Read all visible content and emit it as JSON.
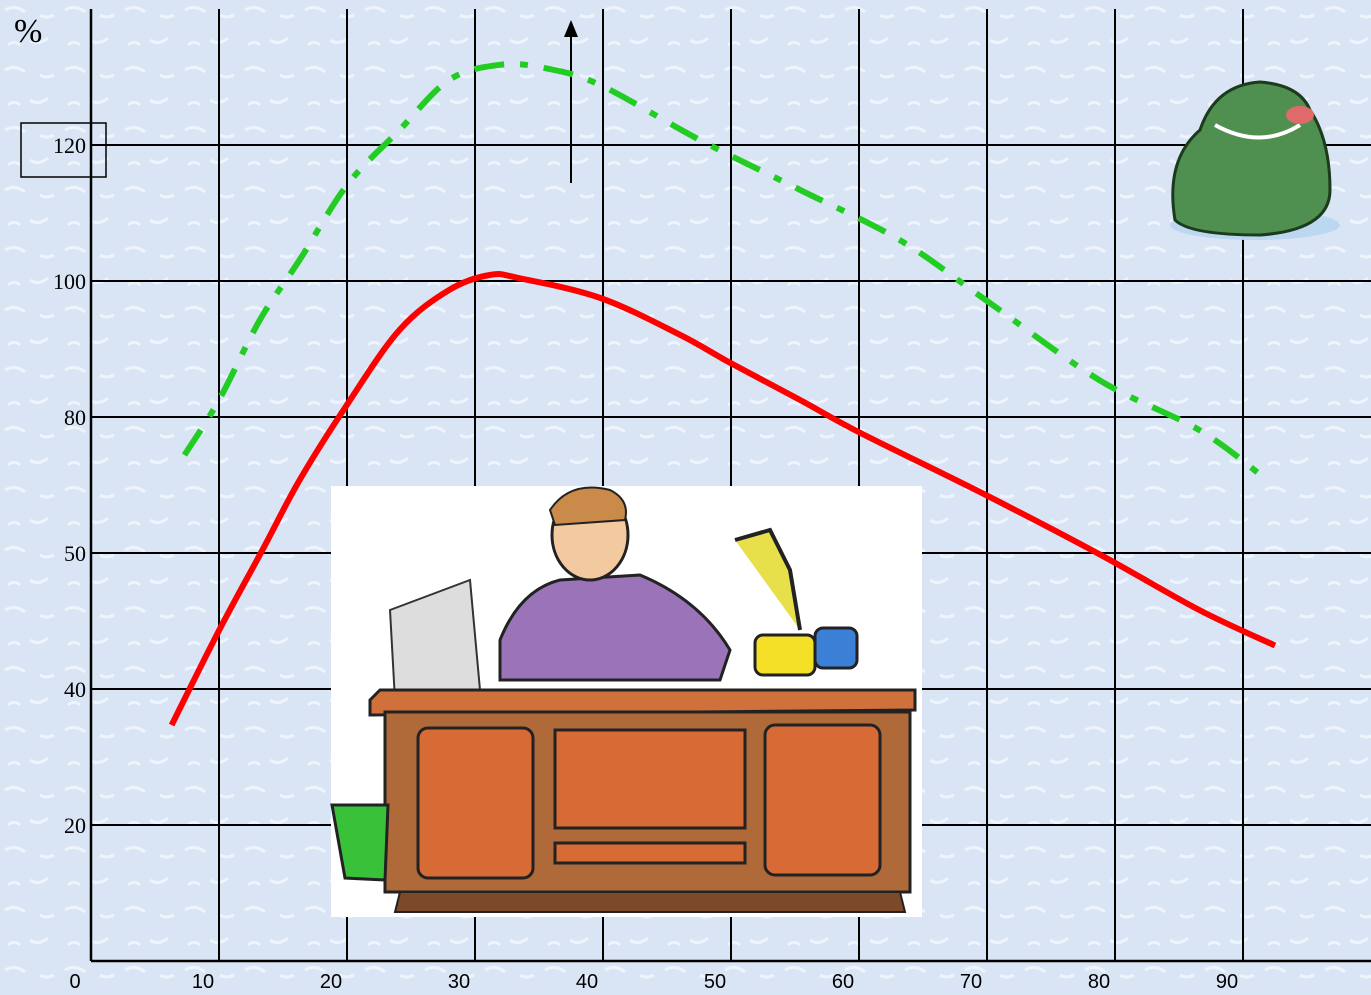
{
  "chart_data": {
    "type": "line",
    "y_label": "%",
    "xlim": [
      0,
      100
    ],
    "xticks": [
      0,
      10,
      20,
      30,
      40,
      50,
      60,
      70,
      80,
      90
    ],
    "ylim": [
      0,
      140
    ],
    "yticks": [
      20,
      40,
      50,
      80,
      100,
      120
    ],
    "grid": true,
    "series": [
      {
        "color": "#ff0000",
        "style": "solid",
        "x": [
          6.3,
          10,
          13.4,
          16.3,
          20,
          24.1,
          28.0,
          31.2,
          33.5,
          39.8,
          46.0,
          50,
          55.4,
          60.1,
          69.9,
          78.8,
          86.6,
          92.5
        ],
        "values": [
          34.7,
          44.3,
          50.7,
          66.1,
          81.8,
          92.8,
          98.7,
          100.9,
          100.4,
          97.5,
          92.1,
          87.9,
          82.5,
          76.5,
          62.8,
          49.9,
          45.8,
          43.2
        ]
      },
      {
        "color": "#22cc22",
        "style": "dashdot",
        "x": [
          7.3,
          10,
          13.2,
          16.3,
          20,
          24.1,
          28.0,
          32.0,
          35.5,
          39.8,
          47.6,
          55.4,
          63.2,
          69.9,
          78.8,
          86.6,
          91.7
        ],
        "values": [
          71.6,
          82.5,
          94.3,
          103.1,
          114.1,
          122.2,
          129.6,
          131.8,
          131.3,
          128.8,
          120.7,
          113.4,
          106.0,
          97.2,
          85.4,
          77.1,
          66.5
        ]
      }
    ]
  }
}
